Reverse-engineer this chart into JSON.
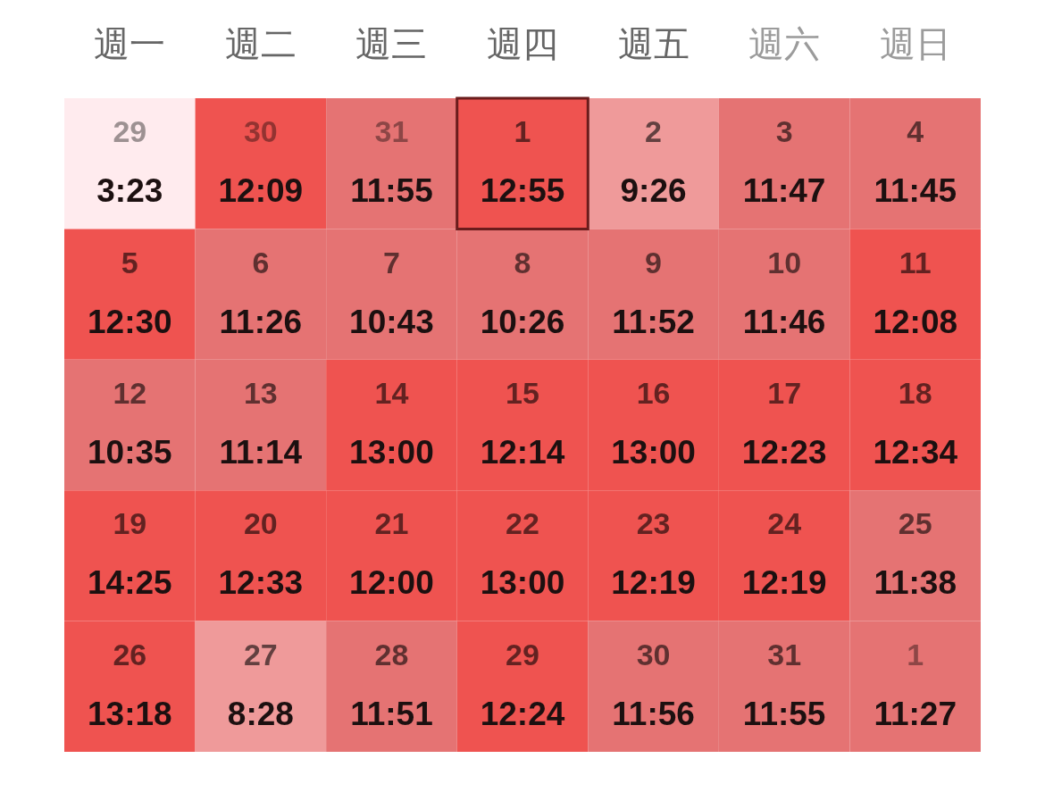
{
  "chart_data": {
    "type": "heatmap",
    "categories": [
      "週一",
      "週二",
      "週三",
      "週四",
      "週五",
      "週六",
      "週日"
    ],
    "y_categories": [
      null,
      null,
      null,
      null,
      null
    ],
    "cells": [
      [
        3.383,
        12.15,
        11.917,
        12.917,
        9.433,
        11.783,
        11.75
      ],
      [
        12.5,
        11.433,
        10.717,
        10.433,
        11.867,
        11.767,
        12.133
      ],
      [
        10.583,
        11.233,
        13.0,
        12.233,
        13.0,
        12.383,
        12.567
      ],
      [
        14.417,
        12.55,
        12.0,
        13.0,
        12.317,
        12.317,
        11.633
      ],
      [
        13.3,
        8.467,
        11.85,
        12.4,
        11.933,
        11.917,
        11.45
      ]
    ],
    "cell_labels": [
      [
        "3:23",
        "12:09",
        "11:55",
        "12:55",
        "9:26",
        "11:47",
        "11:45"
      ],
      [
        "12:30",
        "11:26",
        "10:43",
        "10:26",
        "11:52",
        "11:46",
        "12:08"
      ],
      [
        "10:35",
        "11:14",
        "13:00",
        "12:14",
        "13:00",
        "12:23",
        "12:34"
      ],
      [
        "14:25",
        "12:33",
        "12:00",
        "13:00",
        "12:19",
        "12:19",
        "11:38"
      ],
      [
        "13:18",
        "8:28",
        "11:51",
        "12:24",
        "11:56",
        "11:55",
        "11:27"
      ]
    ],
    "annotations": [
      "29",
      "30",
      "31",
      "1",
      "2",
      "3",
      "4",
      "5",
      "6",
      "7",
      "8",
      "9",
      "10",
      "11",
      "12",
      "13",
      "14",
      "15",
      "16",
      "17",
      "18",
      "19",
      "20",
      "21",
      "22",
      "23",
      "24",
      "25",
      "26",
      "27",
      "28",
      "29",
      "30",
      "31",
      "1"
    ],
    "colors": [
      [
        "#ffebee",
        "#ef5350",
        "#e57373",
        "#ef5350",
        "#ef9a9a",
        "#e57373",
        "#e57373"
      ],
      [
        "#ef5350",
        "#e57373",
        "#e57373",
        "#e57373",
        "#e57373",
        "#e57373",
        "#ef5350"
      ],
      [
        "#e57373",
        "#e57373",
        "#ef5350",
        "#ef5350",
        "#ef5350",
        "#ef5350",
        "#ef5350"
      ],
      [
        "#ef5350",
        "#ef5350",
        "#ef5350",
        "#ef5350",
        "#ef5350",
        "#ef5350",
        "#e57373"
      ],
      [
        "#ef5350",
        "#ef9a9a",
        "#e57373",
        "#ef5350",
        "#e57373",
        "#e57373",
        "#e57373"
      ]
    ]
  }
}
